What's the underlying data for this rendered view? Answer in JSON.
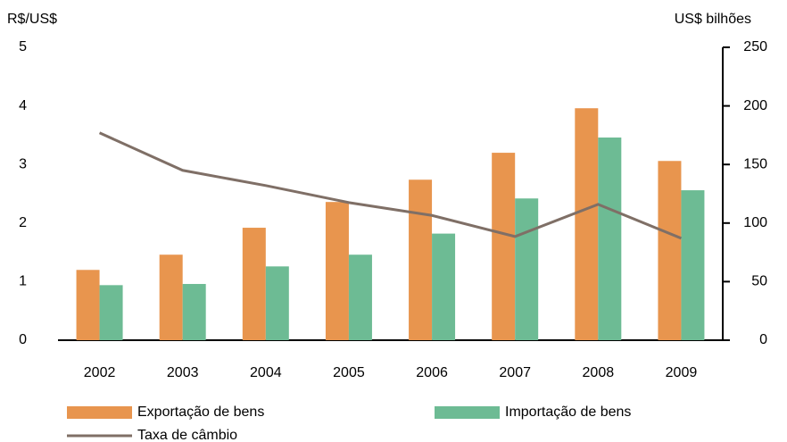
{
  "chart_data": {
    "type": "bar",
    "y_label": "R$/US$",
    "y2_label": "US$ bilhões",
    "categories": [
      "2002",
      "2003",
      "2004",
      "2005",
      "2006",
      "2007",
      "2008",
      "2009"
    ],
    "series": [
      {
        "name": "Exportação de bens",
        "type": "bar",
        "axis": "y2",
        "color": "#e8954e",
        "values": [
          60,
          73,
          96,
          118,
          137,
          160,
          198,
          153
        ]
      },
      {
        "name": "Importação de bens",
        "type": "bar",
        "axis": "y2",
        "color": "#6dbb94",
        "values": [
          47,
          48,
          63,
          73,
          91,
          121,
          173,
          128
        ]
      },
      {
        "name": "Taxa de câmbio",
        "type": "line",
        "axis": "y",
        "color": "#7f6f66",
        "values": [
          3.54,
          2.9,
          2.64,
          2.35,
          2.13,
          1.77,
          2.32,
          1.74
        ]
      }
    ],
    "ylim": [
      0,
      5
    ],
    "yticks": [
      0,
      1,
      2,
      3,
      4,
      5
    ],
    "y2lim": [
      0,
      250
    ],
    "y2ticks": [
      0,
      50,
      100,
      150,
      200,
      250
    ],
    "grid": false
  }
}
